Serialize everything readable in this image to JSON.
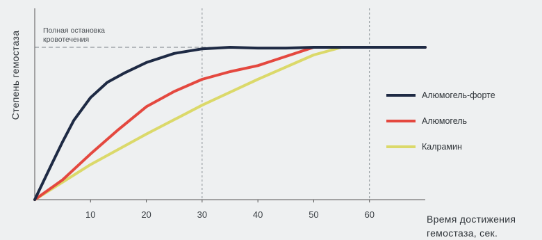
{
  "chart_data": {
    "type": "line",
    "ylabel": "Степень гемостаза",
    "xlabel_lines": [
      "Время достижения",
      "гемостаза, сек."
    ],
    "xlim": [
      0,
      70
    ],
    "ylim": [
      0,
      1
    ],
    "x_ticks": [
      10,
      20,
      30,
      40,
      50,
      60
    ],
    "grid_x": [
      30,
      60
    ],
    "annotation": {
      "lines": [
        "Полная остановка",
        "кровотечения"
      ],
      "y": 1.0
    },
    "legend_position": "right",
    "series": [
      {
        "name": "Алюмогель-форте",
        "color": "#1e2a44",
        "points": [
          [
            0,
            0
          ],
          [
            3,
            0.23
          ],
          [
            5,
            0.38
          ],
          [
            7,
            0.52
          ],
          [
            10,
            0.67
          ],
          [
            13,
            0.77
          ],
          [
            16,
            0.83
          ],
          [
            20,
            0.9
          ],
          [
            25,
            0.96
          ],
          [
            30,
            0.99
          ],
          [
            35,
            1.0
          ],
          [
            40,
            0.995
          ],
          [
            45,
            0.995
          ],
          [
            50,
            1.0
          ],
          [
            55,
            1.0
          ],
          [
            60,
            1.0
          ],
          [
            70,
            1.0
          ]
        ]
      },
      {
        "name": "Алюмогель",
        "color": "#e4483f",
        "points": [
          [
            0,
            0
          ],
          [
            5,
            0.13
          ],
          [
            10,
            0.3
          ],
          [
            15,
            0.46
          ],
          [
            20,
            0.61
          ],
          [
            25,
            0.71
          ],
          [
            30,
            0.79
          ],
          [
            35,
            0.84
          ],
          [
            40,
            0.88
          ],
          [
            45,
            0.94
          ],
          [
            50,
            1.0
          ],
          [
            55,
            1.0
          ],
          [
            60,
            1.0
          ],
          [
            70,
            1.0
          ]
        ]
      },
      {
        "name": "Калрамин",
        "color": "#dbd96a",
        "points": [
          [
            0,
            0
          ],
          [
            10,
            0.23
          ],
          [
            20,
            0.43
          ],
          [
            30,
            0.62
          ],
          [
            40,
            0.79
          ],
          [
            50,
            0.95
          ],
          [
            55,
            1.0
          ],
          [
            60,
            1.0
          ]
        ]
      }
    ]
  }
}
